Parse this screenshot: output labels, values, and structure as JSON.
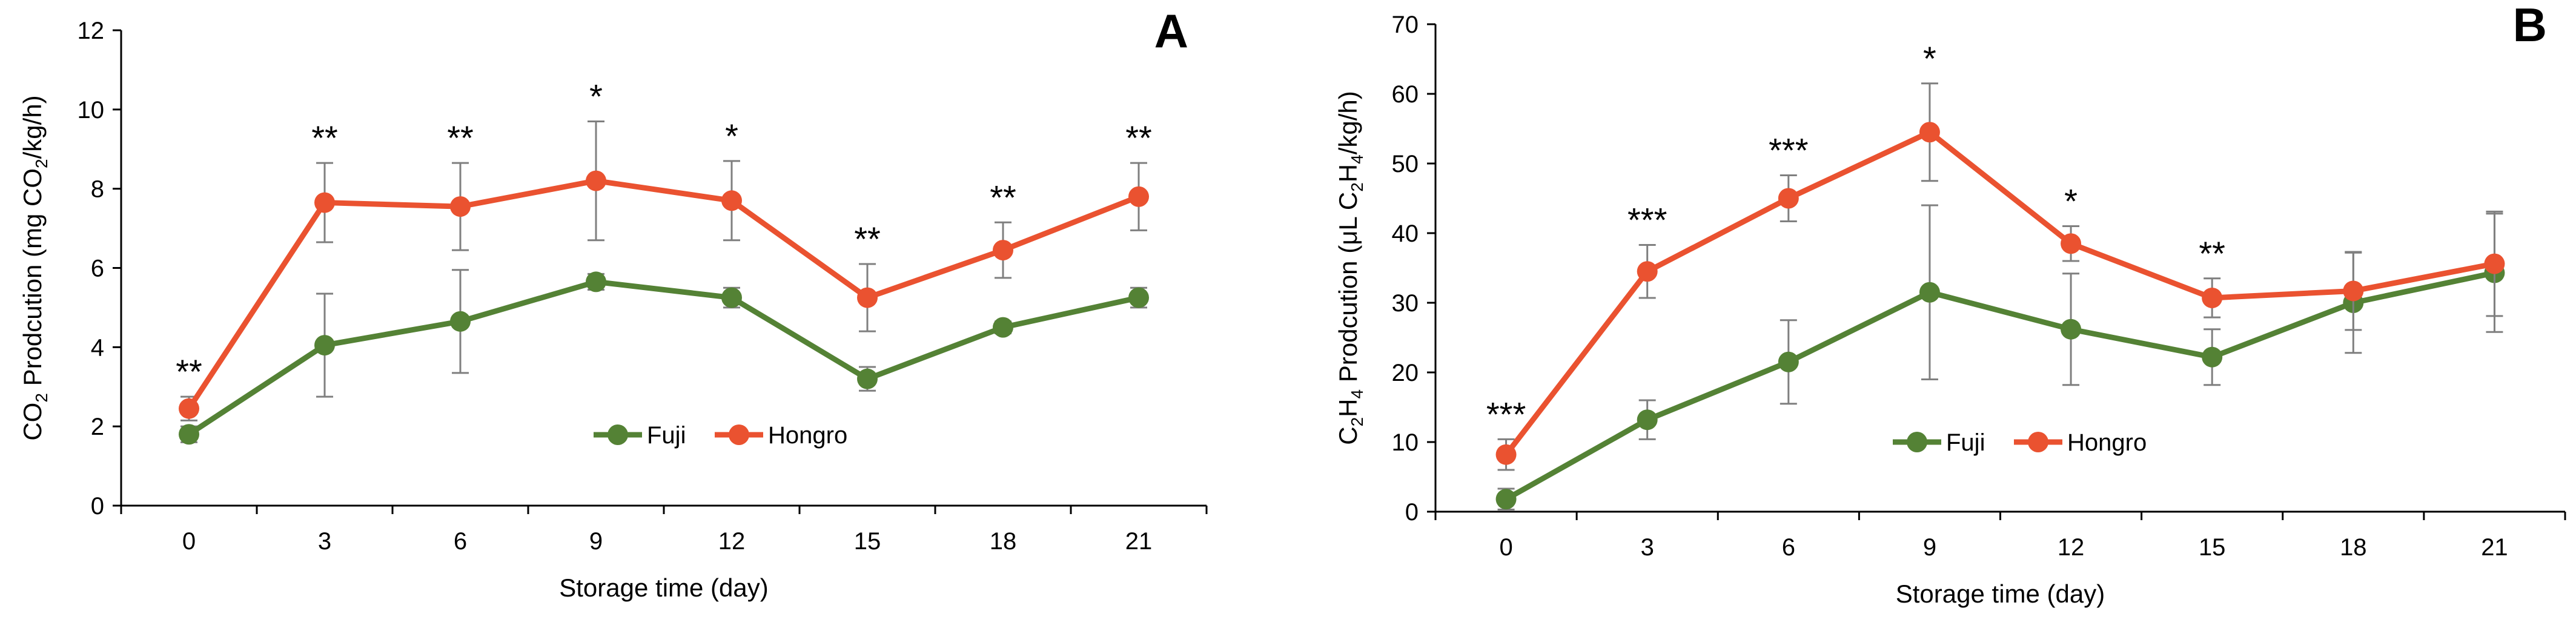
{
  "chart_data": [
    {
      "type": "line",
      "panel_label": "A",
      "x": [
        0,
        3,
        6,
        9,
        12,
        15,
        18,
        21
      ],
      "x_tick_labels": [
        "0",
        "3",
        "6",
        "9",
        "12",
        "15",
        "18",
        "21"
      ],
      "xlabel": "Storage time (day)",
      "ylabel": "CO₂ Prodcution (mg CO₂/kg/h)",
      "ylabel_parts": [
        "CO",
        "2",
        " Prodcution (mg CO",
        "2",
        "/kg/h)"
      ],
      "ylim": [
        0,
        12
      ],
      "y_ticks": [
        0,
        2,
        4,
        6,
        8,
        10,
        12
      ],
      "legend": [
        "Fuji",
        "Hongro"
      ],
      "legend_position": "bottom-center",
      "series": [
        {
          "name": "Fuji",
          "color": "#548235",
          "values": [
            1.8,
            4.05,
            4.65,
            5.65,
            5.25,
            3.2,
            4.5,
            5.25
          ],
          "errors": [
            0.2,
            1.3,
            1.3,
            0.2,
            0.25,
            0.3,
            0.15,
            0.25
          ]
        },
        {
          "name": "Hongro",
          "color": "#ea5230",
          "values": [
            2.45,
            7.65,
            7.55,
            8.2,
            7.7,
            5.25,
            6.45,
            7.8
          ],
          "errors": [
            0.3,
            1.0,
            1.1,
            1.5,
            1.0,
            0.85,
            0.7,
            0.85
          ]
        }
      ],
      "significance": [
        "**",
        "**",
        "**",
        "*",
        "*",
        "**",
        "**",
        "**"
      ]
    },
    {
      "type": "line",
      "panel_label": "B",
      "x": [
        0,
        3,
        6,
        9,
        12,
        15,
        18,
        21
      ],
      "x_tick_labels": [
        "0",
        "3",
        "6",
        "9",
        "12",
        "15",
        "18",
        "21"
      ],
      "xlabel": "Storage time (day)",
      "ylabel": "C₂H₄ Prodcution (μL C₂H₄/kg/h)",
      "ylabel_parts": [
        "C",
        "2",
        "H",
        "4",
        " Prodcution (μL C",
        "2",
        "H",
        "4",
        "/kg/h)"
      ],
      "ylim": [
        0,
        70
      ],
      "y_ticks": [
        0,
        10,
        20,
        30,
        40,
        50,
        60,
        70
      ],
      "legend": [
        "Fuji",
        "Hongro"
      ],
      "legend_position": "bottom-center",
      "series": [
        {
          "name": "Fuji",
          "color": "#548235",
          "values": [
            1.8,
            13.2,
            21.5,
            31.5,
            26.2,
            22.2,
            30.0,
            34.3
          ],
          "errors": [
            1.5,
            2.8,
            6.0,
            12.5,
            8.0,
            4.0,
            7.2,
            8.5
          ]
        },
        {
          "name": "Hongro",
          "color": "#ea5230",
          "values": [
            8.2,
            34.5,
            45.0,
            54.5,
            38.5,
            30.7,
            31.7,
            35.6
          ],
          "errors": [
            2.2,
            3.8,
            3.3,
            7.0,
            2.5,
            2.8,
            5.6,
            7.5
          ]
        }
      ],
      "significance": [
        "***",
        "***",
        "***",
        "*",
        "*",
        "**",
        "",
        ""
      ]
    }
  ]
}
